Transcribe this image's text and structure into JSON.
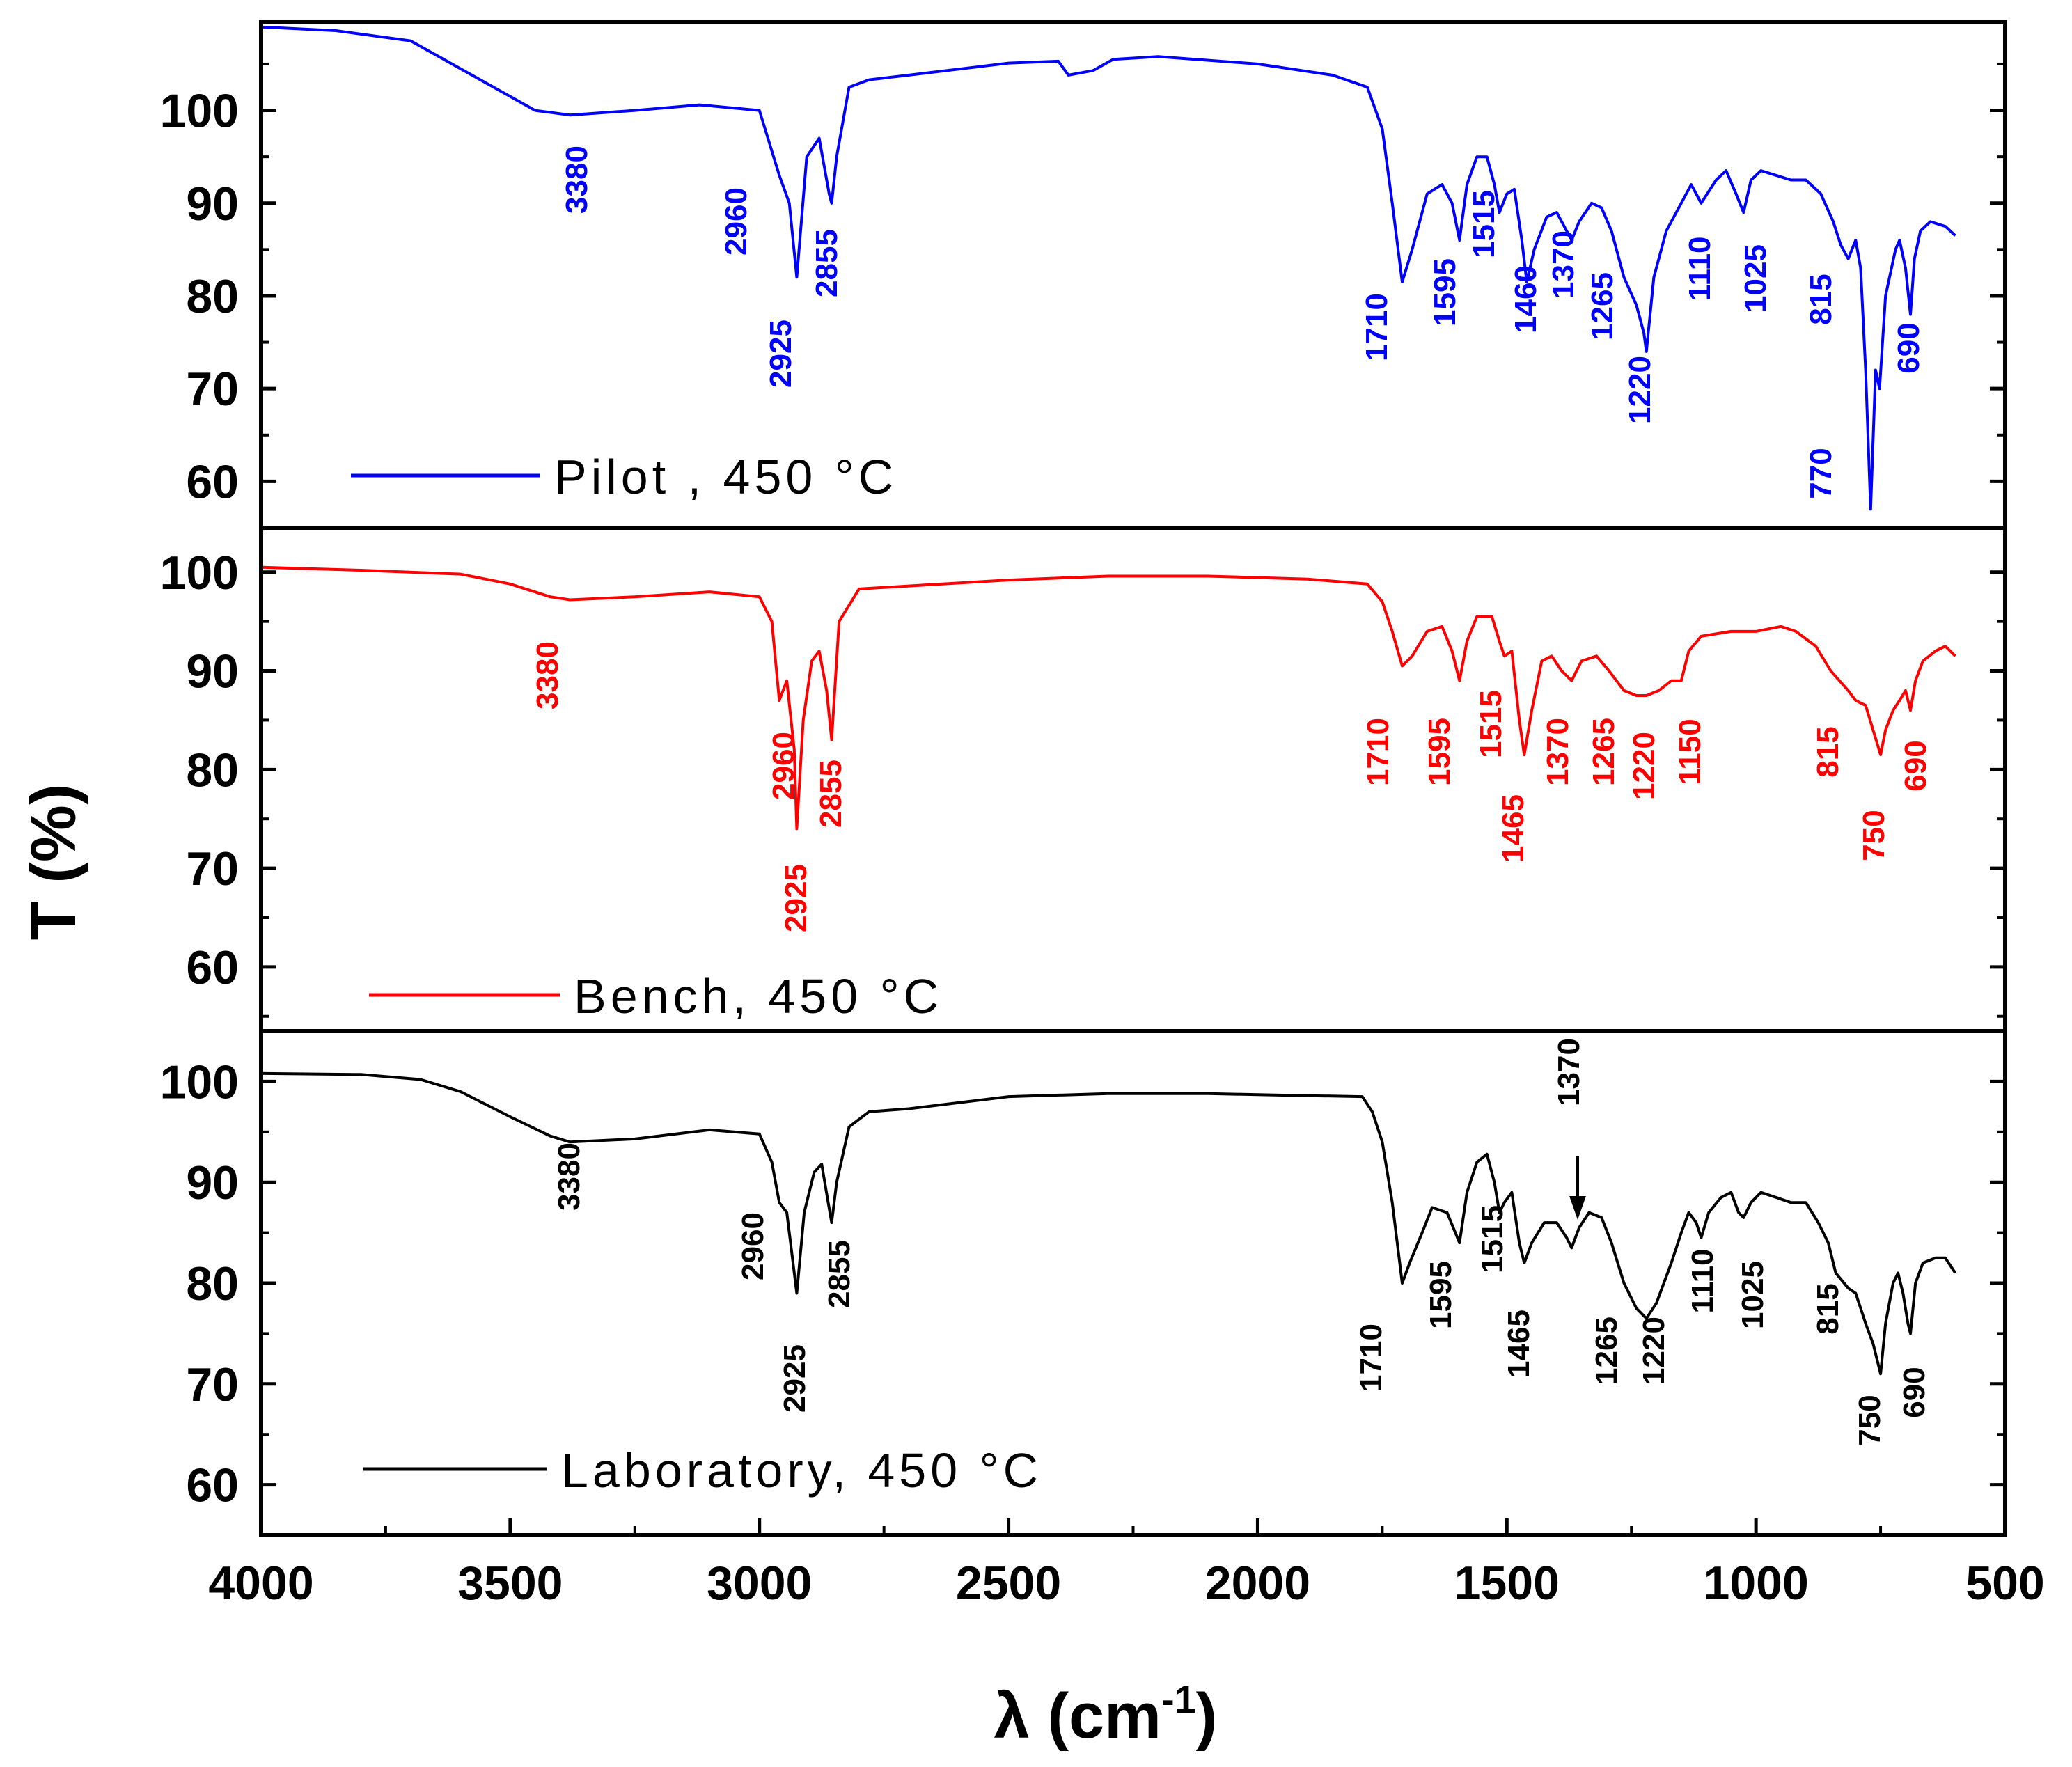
{
  "chart_data": {
    "type": "line",
    "xlabel": "λ (cm",
    "xlabel_sup": "-1",
    "xlabel_end": ")",
    "ylabel": "T (%)",
    "xlim": [
      4000,
      500
    ],
    "x_ticks": [
      "4000",
      "3500",
      "3000",
      "2500",
      "2000",
      "1500",
      "1000",
      "500"
    ],
    "x_tick_values": [
      4000,
      3500,
      3000,
      2500,
      2000,
      1500,
      1000,
      500
    ],
    "panels": [
      {
        "name": "Pilot , 450 °C",
        "color": "#0000ff",
        "ylim": [
          55,
          109.5
        ],
        "y_ticks": [
          "60",
          "70",
          "80",
          "90",
          "100"
        ],
        "y_tick_values": [
          60,
          70,
          80,
          90,
          100
        ],
        "spectrum": [
          [
            4000,
            109
          ],
          [
            3850,
            108.6
          ],
          [
            3700,
            107.5
          ],
          [
            3550,
            103
          ],
          [
            3450,
            100
          ],
          [
            3380,
            99.5
          ],
          [
            3250,
            100
          ],
          [
            3120,
            100.6
          ],
          [
            3000,
            100
          ],
          [
            2960,
            93
          ],
          [
            2940,
            90
          ],
          [
            2925,
            82
          ],
          [
            2905,
            95
          ],
          [
            2880,
            97
          ],
          [
            2860,
            91
          ],
          [
            2855,
            90
          ],
          [
            2845,
            95
          ],
          [
            2820,
            102.5
          ],
          [
            2780,
            103.3
          ],
          [
            2700,
            103.8
          ],
          [
            2500,
            105.1
          ],
          [
            2400,
            105.3
          ],
          [
            2380,
            103.8
          ],
          [
            2330,
            104.3
          ],
          [
            2290,
            105.5
          ],
          [
            2200,
            105.8
          ],
          [
            2000,
            105
          ],
          [
            1850,
            103.8
          ],
          [
            1780,
            102.5
          ],
          [
            1750,
            98
          ],
          [
            1730,
            90
          ],
          [
            1710,
            81.5
          ],
          [
            1690,
            85
          ],
          [
            1660,
            91
          ],
          [
            1630,
            92
          ],
          [
            1610,
            90
          ],
          [
            1595,
            86
          ],
          [
            1580,
            92
          ],
          [
            1560,
            95
          ],
          [
            1540,
            95
          ],
          [
            1525,
            92
          ],
          [
            1515,
            89
          ],
          [
            1500,
            91
          ],
          [
            1485,
            91.5
          ],
          [
            1470,
            86
          ],
          [
            1460,
            81.5
          ],
          [
            1445,
            85
          ],
          [
            1420,
            88.5
          ],
          [
            1400,
            89
          ],
          [
            1380,
            87
          ],
          [
            1370,
            86
          ],
          [
            1355,
            88
          ],
          [
            1330,
            90
          ],
          [
            1310,
            89.5
          ],
          [
            1290,
            87
          ],
          [
            1265,
            82
          ],
          [
            1240,
            79
          ],
          [
            1225,
            76
          ],
          [
            1220,
            74
          ],
          [
            1205,
            82
          ],
          [
            1180,
            87
          ],
          [
            1150,
            90
          ],
          [
            1130,
            92
          ],
          [
            1110,
            90
          ],
          [
            1080,
            92.5
          ],
          [
            1060,
            93.5
          ],
          [
            1040,
            91
          ],
          [
            1025,
            89
          ],
          [
            1010,
            92.5
          ],
          [
            990,
            93.5
          ],
          [
            960,
            93
          ],
          [
            930,
            92.5
          ],
          [
            900,
            92.5
          ],
          [
            870,
            91
          ],
          [
            845,
            88
          ],
          [
            830,
            85.5
          ],
          [
            815,
            84
          ],
          [
            800,
            86
          ],
          [
            790,
            83
          ],
          [
            780,
            72
          ],
          [
            770,
            57
          ],
          [
            760,
            72
          ],
          [
            752,
            70
          ],
          [
            740,
            80
          ],
          [
            720,
            85
          ],
          [
            712,
            86
          ],
          [
            700,
            83
          ],
          [
            690,
            78
          ],
          [
            682,
            84
          ],
          [
            670,
            87
          ],
          [
            650,
            88
          ],
          [
            620,
            87.5
          ],
          [
            600,
            86.5
          ]
        ],
        "peaks": [
          "3380",
          "2960",
          "2925",
          "2855",
          "1710",
          "1595",
          "1515",
          "1460",
          "1370",
          "1265",
          "1220",
          "1110",
          "1025",
          "815",
          "770",
          "690"
        ]
      },
      {
        "name": "Bench, 450 °C",
        "color": "#ff0000",
        "ylim": [
          53.5,
          104.5
        ],
        "y_ticks": [
          "60",
          "70",
          "80",
          "90",
          "100"
        ],
        "y_tick_values": [
          60,
          70,
          80,
          90,
          100
        ],
        "spectrum": [
          [
            4000,
            100.5
          ],
          [
            3800,
            100.2
          ],
          [
            3600,
            99.8
          ],
          [
            3500,
            98.8
          ],
          [
            3420,
            97.5
          ],
          [
            3380,
            97.2
          ],
          [
            3250,
            97.5
          ],
          [
            3100,
            98
          ],
          [
            3000,
            97.5
          ],
          [
            2975,
            95
          ],
          [
            2960,
            87
          ],
          [
            2945,
            89
          ],
          [
            2930,
            82
          ],
          [
            2925,
            74
          ],
          [
            2912,
            85
          ],
          [
            2895,
            91
          ],
          [
            2880,
            92
          ],
          [
            2865,
            88
          ],
          [
            2855,
            83
          ],
          [
            2840,
            95
          ],
          [
            2800,
            98.3
          ],
          [
            2700,
            98.6
          ],
          [
            2500,
            99.2
          ],
          [
            2300,
            99.6
          ],
          [
            2100,
            99.6
          ],
          [
            1900,
            99.3
          ],
          [
            1780,
            98.8
          ],
          [
            1750,
            97
          ],
          [
            1730,
            94
          ],
          [
            1710,
            90.5
          ],
          [
            1690,
            91.5
          ],
          [
            1660,
            94
          ],
          [
            1630,
            94.5
          ],
          [
            1610,
            92
          ],
          [
            1595,
            89
          ],
          [
            1580,
            93
          ],
          [
            1560,
            95.5
          ],
          [
            1530,
            95.5
          ],
          [
            1515,
            93
          ],
          [
            1505,
            91.5
          ],
          [
            1490,
            92
          ],
          [
            1475,
            85
          ],
          [
            1465,
            81.5
          ],
          [
            1450,
            86
          ],
          [
            1430,
            91
          ],
          [
            1410,
            91.5
          ],
          [
            1390,
            90
          ],
          [
            1370,
            89
          ],
          [
            1350,
            91
          ],
          [
            1320,
            91.5
          ],
          [
            1295,
            90
          ],
          [
            1265,
            88
          ],
          [
            1240,
            87.5
          ],
          [
            1220,
            87.5
          ],
          [
            1195,
            88
          ],
          [
            1170,
            89
          ],
          [
            1150,
            89
          ],
          [
            1135,
            92
          ],
          [
            1110,
            93.5
          ],
          [
            1050,
            94
          ],
          [
            1000,
            94
          ],
          [
            950,
            94.5
          ],
          [
            920,
            94
          ],
          [
            880,
            92.5
          ],
          [
            850,
            90
          ],
          [
            815,
            88
          ],
          [
            800,
            87
          ],
          [
            780,
            86.5
          ],
          [
            765,
            84
          ],
          [
            750,
            81.5
          ],
          [
            740,
            84
          ],
          [
            725,
            86
          ],
          [
            712,
            87
          ],
          [
            700,
            88
          ],
          [
            690,
            86
          ],
          [
            680,
            89
          ],
          [
            665,
            91
          ],
          [
            640,
            92
          ],
          [
            620,
            92.5
          ],
          [
            600,
            91.5
          ]
        ],
        "peaks": [
          "3380",
          "2960",
          "2925",
          "2855",
          "1710",
          "1595",
          "1515",
          "1465",
          "1370",
          "1265",
          "1220",
          "1150",
          "815",
          "750",
          "690"
        ]
      },
      {
        "name": "Laboratory, 450 °C",
        "color": "#000000",
        "ylim": [
          55,
          105
        ],
        "y_ticks": [
          "60",
          "70",
          "80",
          "90",
          "100"
        ],
        "y_tick_values": [
          60,
          70,
          80,
          90,
          100
        ],
        "spectrum": [
          [
            4000,
            100.8
          ],
          [
            3800,
            100.7
          ],
          [
            3680,
            100.2
          ],
          [
            3600,
            99
          ],
          [
            3500,
            96.5
          ],
          [
            3420,
            94.6
          ],
          [
            3380,
            94
          ],
          [
            3250,
            94.3
          ],
          [
            3100,
            95.2
          ],
          [
            3000,
            94.8
          ],
          [
            2975,
            92
          ],
          [
            2960,
            88
          ],
          [
            2945,
            87
          ],
          [
            2925,
            79
          ],
          [
            2910,
            87
          ],
          [
            2890,
            91
          ],
          [
            2875,
            91.8
          ],
          [
            2862,
            88
          ],
          [
            2855,
            86
          ],
          [
            2845,
            90
          ],
          [
            2820,
            95.5
          ],
          [
            2780,
            97
          ],
          [
            2700,
            97.3
          ],
          [
            2500,
            98.5
          ],
          [
            2300,
            98.8
          ],
          [
            2100,
            98.8
          ],
          [
            1900,
            98.6
          ],
          [
            1790,
            98.5
          ],
          [
            1770,
            97
          ],
          [
            1750,
            94
          ],
          [
            1730,
            88
          ],
          [
            1710,
            80
          ],
          [
            1695,
            82
          ],
          [
            1670,
            85
          ],
          [
            1650,
            87.5
          ],
          [
            1620,
            87
          ],
          [
            1595,
            84
          ],
          [
            1580,
            89
          ],
          [
            1560,
            92
          ],
          [
            1540,
            92.8
          ],
          [
            1525,
            90
          ],
          [
            1515,
            87
          ],
          [
            1505,
            88
          ],
          [
            1490,
            89
          ],
          [
            1475,
            84
          ],
          [
            1465,
            82
          ],
          [
            1450,
            84
          ],
          [
            1425,
            86
          ],
          [
            1400,
            86
          ],
          [
            1380,
            84.5
          ],
          [
            1370,
            83.5
          ],
          [
            1355,
            85.5
          ],
          [
            1335,
            87
          ],
          [
            1310,
            86.5
          ],
          [
            1290,
            84
          ],
          [
            1265,
            80
          ],
          [
            1240,
            77.5
          ],
          [
            1220,
            76.5
          ],
          [
            1200,
            78
          ],
          [
            1170,
            82
          ],
          [
            1150,
            85
          ],
          [
            1135,
            87
          ],
          [
            1120,
            86
          ],
          [
            1110,
            84.5
          ],
          [
            1095,
            87
          ],
          [
            1070,
            88.5
          ],
          [
            1050,
            89
          ],
          [
            1035,
            87
          ],
          [
            1025,
            86.5
          ],
          [
            1010,
            88
          ],
          [
            990,
            89
          ],
          [
            960,
            88.5
          ],
          [
            930,
            88
          ],
          [
            900,
            88
          ],
          [
            875,
            86
          ],
          [
            855,
            84
          ],
          [
            840,
            81
          ],
          [
            815,
            79.5
          ],
          [
            800,
            79
          ],
          [
            780,
            76
          ],
          [
            765,
            74
          ],
          [
            750,
            71
          ],
          [
            740,
            76
          ],
          [
            725,
            80
          ],
          [
            715,
            81
          ],
          [
            705,
            79
          ],
          [
            695,
            76
          ],
          [
            690,
            75
          ],
          [
            680,
            80
          ],
          [
            665,
            82
          ],
          [
            640,
            82.5
          ],
          [
            620,
            82.5
          ],
          [
            600,
            81
          ]
        ],
        "peaks": [
          "3380",
          "2960",
          "2925",
          "2855",
          "1710",
          "1595",
          "1515",
          "1465",
          "1370",
          "1265",
          "1220",
          "1110",
          "1025",
          "815",
          "750",
          "690"
        ]
      }
    ]
  }
}
